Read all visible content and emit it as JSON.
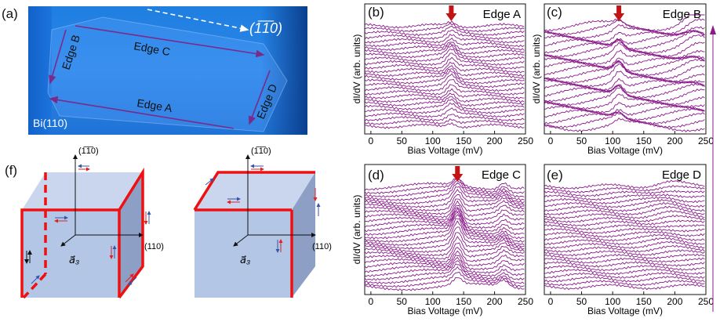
{
  "figure": {
    "panel_labels": {
      "a": "(a)",
      "b": "(b)",
      "c": "(c)",
      "d": "(d)",
      "e": "(e)",
      "f": "(f)"
    },
    "panel_a": {
      "edge_labels": [
        "Edge A",
        "Edge B",
        "Edge C",
        "Edge D"
      ],
      "direction": "(1̅1̅0)",
      "substrate": "Bi(110)",
      "colors": {
        "image": "#2a86ea",
        "arrows": "#7a2a8a"
      }
    },
    "panel_f": {
      "axis_up": "(1̅1̅0)",
      "axis_right": "(110)",
      "axis_diag": "a⃗₃",
      "colors": {
        "cube": "#b4c6e6",
        "edge": "#ee1111",
        "arrow_red": "#dd2222",
        "arrow_blue": "#3355aa"
      }
    }
  },
  "chart_data": [
    {
      "type": "line",
      "panel": "b",
      "title": "Edge A",
      "xlabel": "Bias Voltage (mV)",
      "ylabel": "dI/dV (arb. units)",
      "xlim": [
        -10,
        250
      ],
      "xticks": [
        0,
        50,
        100,
        150,
        200,
        250
      ],
      "peak_marker_x": 130,
      "curves": 28,
      "color": "#8b1a8b"
    },
    {
      "type": "line",
      "panel": "c",
      "title": "Edge B",
      "xlabel": "Bias Voltage (mV)",
      "ylabel": "dI/dV (arb. units)",
      "xlim": [
        -10,
        250
      ],
      "xticks": [
        0,
        50,
        100,
        150,
        200,
        250
      ],
      "peak_marker_x": 110,
      "curves": 28,
      "color": "#8b1a8b"
    },
    {
      "type": "line",
      "panel": "d",
      "title": "Edge C",
      "xlabel": "Bias Voltage (mV)",
      "ylabel": "dI/dV (arb. units)",
      "xlim": [
        -10,
        250
      ],
      "xticks": [
        0,
        50,
        100,
        150,
        200,
        250
      ],
      "peak_marker_x": 140,
      "curves": 30,
      "color": "#8b1a8b"
    },
    {
      "type": "line",
      "panel": "e",
      "title": "Edge D",
      "xlabel": "Bias Voltage (mV)",
      "ylabel": "",
      "xlim": [
        -10,
        250
      ],
      "xticks": [
        0,
        50,
        100,
        150,
        200,
        250
      ],
      "peak_marker_x": null,
      "curves": 28,
      "color": "#8b1a8b"
    }
  ]
}
